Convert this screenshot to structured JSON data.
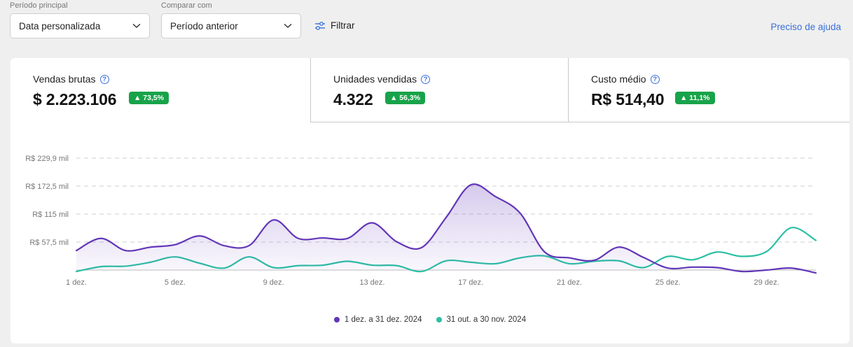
{
  "filters": {
    "main_label": "Período principal",
    "main_value": "Data personalizada",
    "compare_label": "Comparar com",
    "compare_value": "Período anterior",
    "filter_label": "Filtrar",
    "help_link": "Preciso de ajuda"
  },
  "metrics": [
    {
      "title": "Vendas brutas",
      "value": "$ 2.223.106",
      "badge": "▲ 73,5%"
    },
    {
      "title": "Unidades vendidas",
      "value": "4.322",
      "badge": "▲ 56,3%"
    },
    {
      "title": "Custo médio",
      "value": "R$ 514,40",
      "badge": "▲ 11,1%"
    }
  ],
  "colors": {
    "primary": "#6236b8",
    "compare": "#2bbfa4",
    "badge": "#18a34a",
    "link": "#3a6fd8"
  },
  "chart_data": {
    "type": "area",
    "x": [
      1,
      2,
      3,
      4,
      5,
      6,
      7,
      8,
      9,
      10,
      11,
      12,
      13,
      14,
      15,
      16,
      17,
      18,
      19,
      20,
      21,
      22,
      23,
      24,
      25,
      26,
      27,
      28,
      29,
      30,
      31
    ],
    "y_ticks": [
      {
        "value": 57.5,
        "label": "R$ 57,5 mil"
      },
      {
        "value": 115,
        "label": "R$ 115 mil"
      },
      {
        "value": 172.5,
        "label": "R$ 172,5 mil"
      },
      {
        "value": 229.9,
        "label": "R$ 229,9 mil"
      }
    ],
    "ylim": [
      0,
      229.9
    ],
    "x_ticks": [
      {
        "x": 1,
        "label": "1 dez."
      },
      {
        "x": 5,
        "label": "5 dez."
      },
      {
        "x": 9,
        "label": "9 dez."
      },
      {
        "x": 13,
        "label": "13 dez."
      },
      {
        "x": 17,
        "label": "17 dez."
      },
      {
        "x": 21,
        "label": "21 dez."
      },
      {
        "x": 25,
        "label": "25 dez."
      },
      {
        "x": 29,
        "label": "29 dez."
      }
    ],
    "series": [
      {
        "name": "1 dez. a 31 dez. 2024",
        "color": "#6236b8",
        "fill": true,
        "values": [
          40,
          65,
          40,
          47,
          52,
          70,
          50,
          50,
          103,
          65,
          66,
          65,
          97,
          58,
          46,
          108,
          175,
          151,
          117,
          37,
          25,
          20,
          47,
          26,
          4,
          6,
          5,
          -3,
          0,
          4,
          -6
        ]
      },
      {
        "name": "31 out. a 30 nov. 2024",
        "color": "#2bbfa4",
        "values": [
          -3,
          7,
          8,
          16,
          27,
          14,
          4,
          27,
          5,
          9,
          10,
          18,
          10,
          9,
          -3,
          19,
          16,
          13,
          25,
          29,
          13,
          18,
          19,
          5,
          28,
          21,
          37,
          28,
          38,
          87,
          61
        ]
      }
    ]
  }
}
